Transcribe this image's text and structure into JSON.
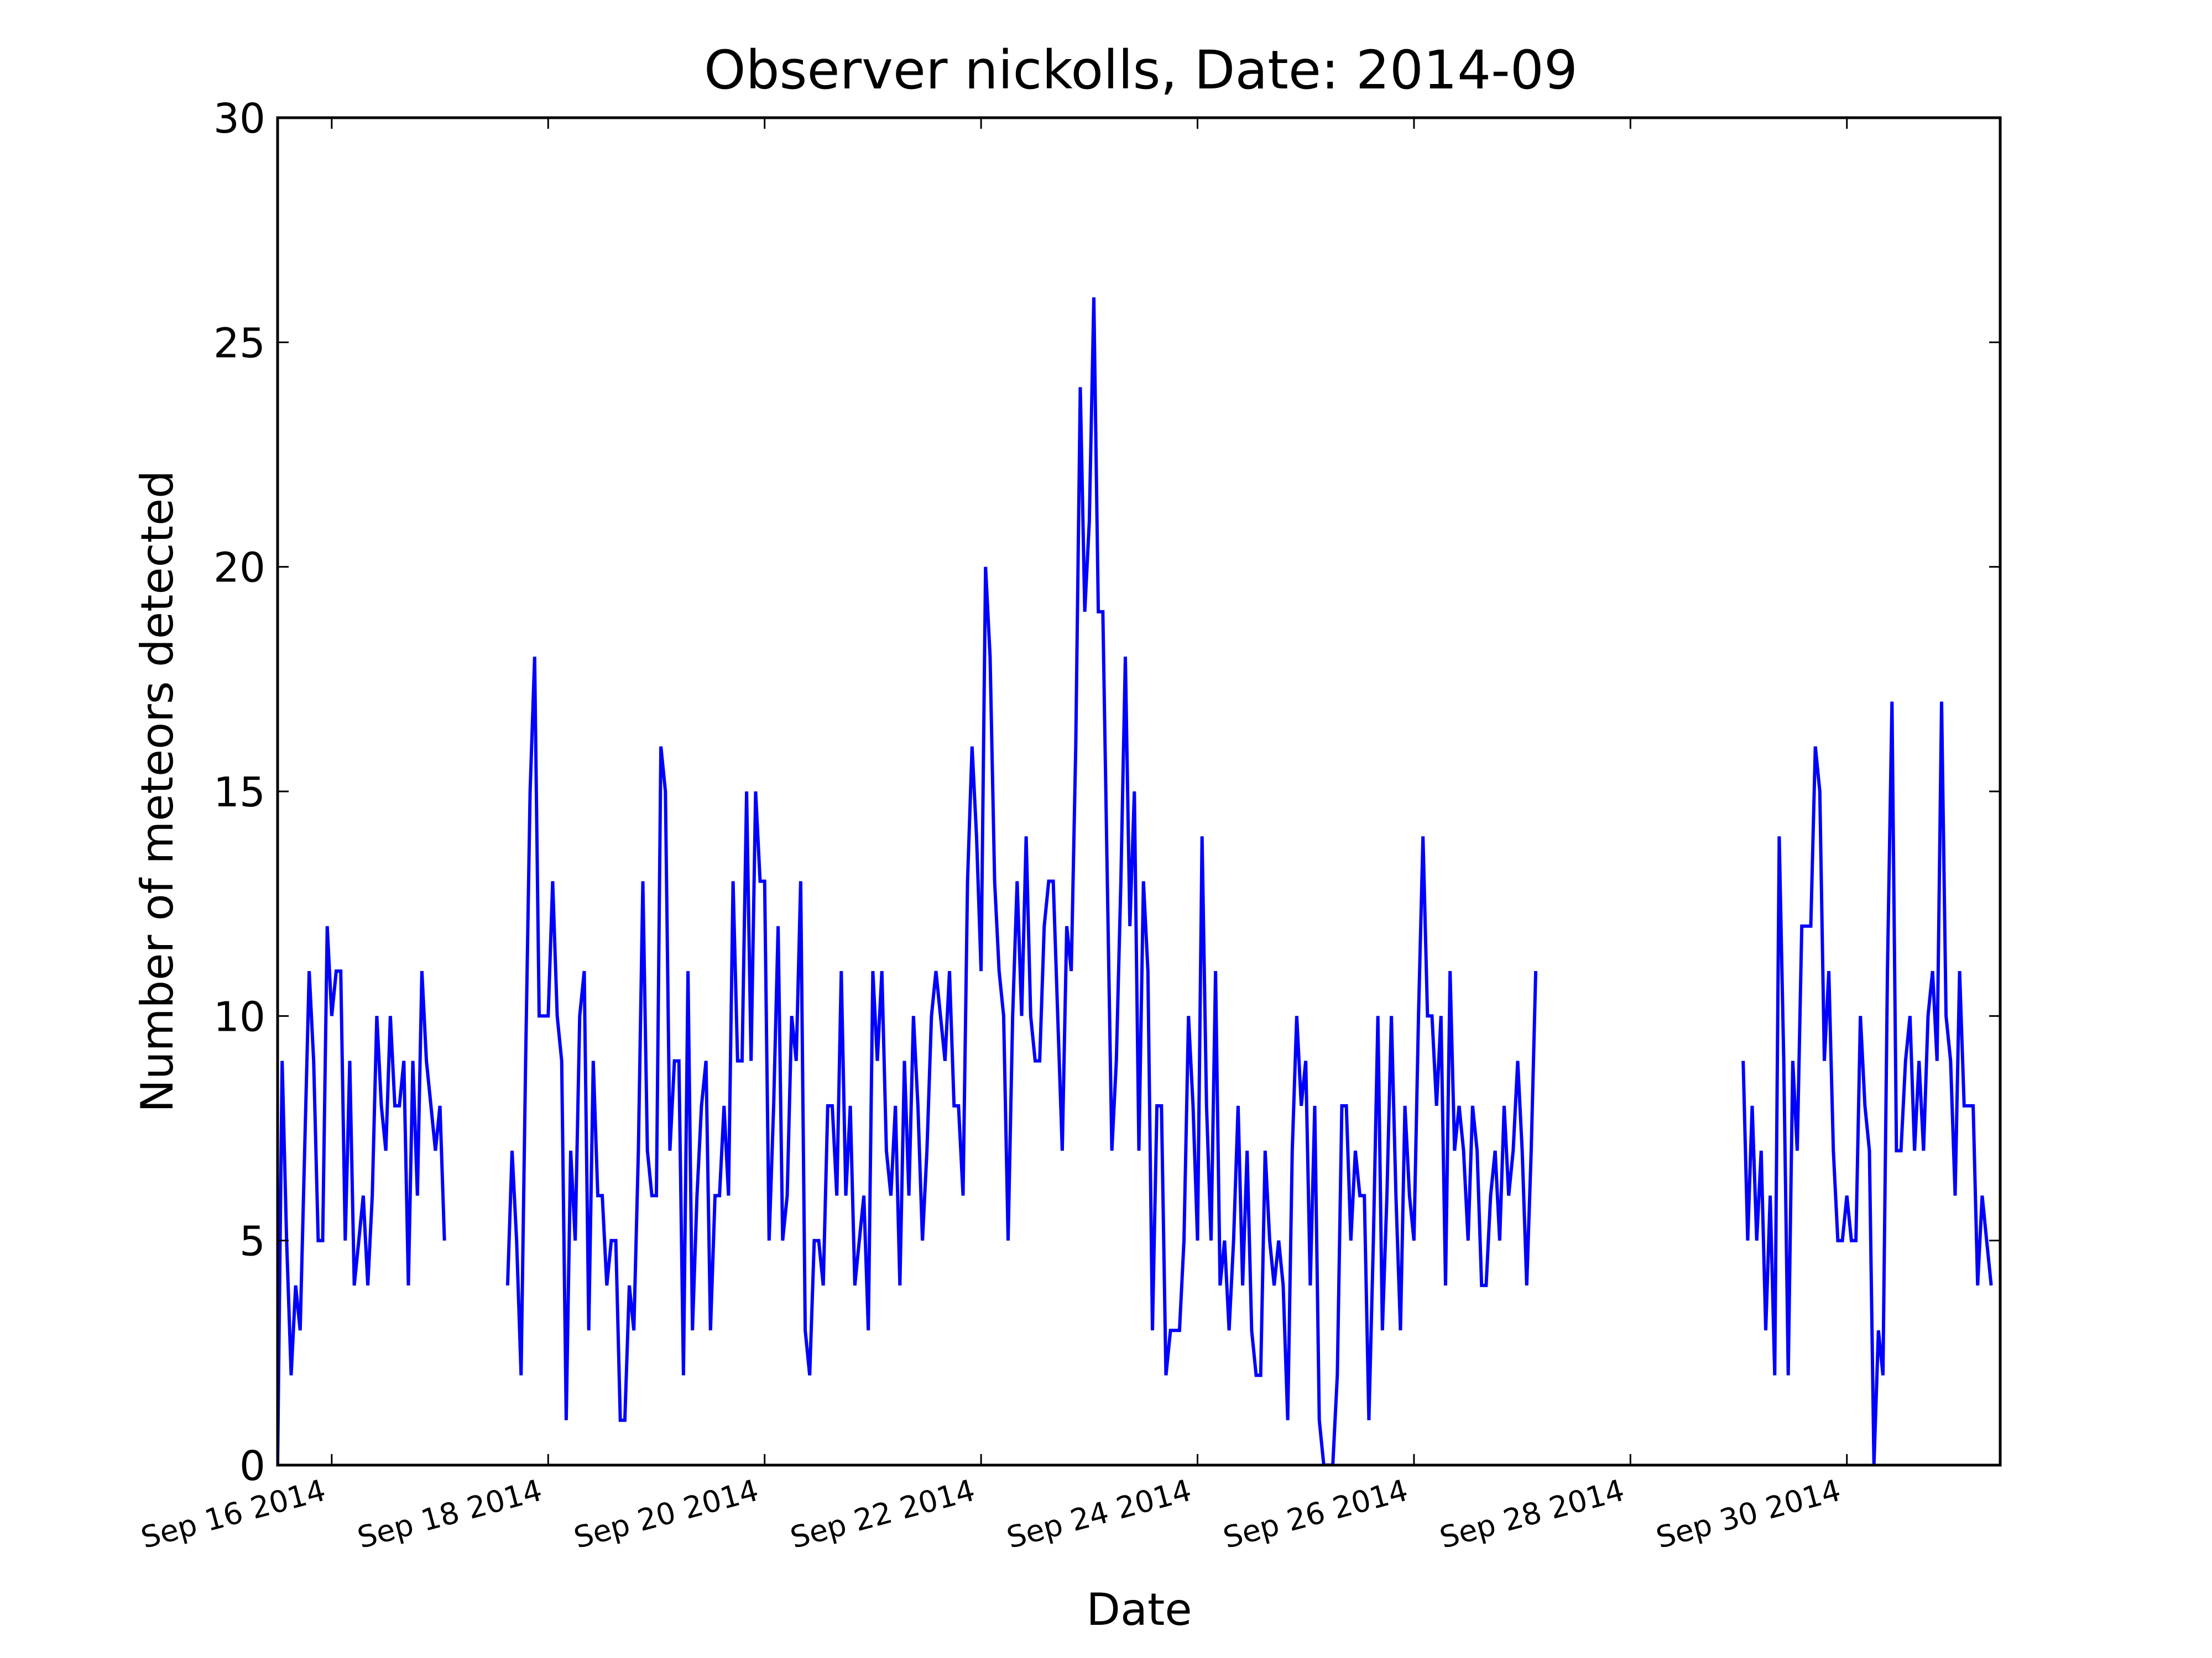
{
  "chart_data": {
    "type": "line",
    "title": "Observer nickolls, Date: 2014-09",
    "xlabel": "Date",
    "ylabel": "Number of meteors detected",
    "xlim": [
      "2014-09-15T12:00",
      "2014-10-01T10:00"
    ],
    "ylim": [
      0,
      30
    ],
    "grid": false,
    "x_ticks": [
      "2014-09-16",
      "2014-09-18",
      "2014-09-20",
      "2014-09-22",
      "2014-09-24",
      "2014-09-26",
      "2014-09-28",
      "2014-09-30"
    ],
    "x_tick_labels": [
      "Sep 16 2014",
      "Sep 18 2014",
      "Sep 20 2014",
      "Sep 22 2014",
      "Sep 24 2014",
      "Sep 26 2014",
      "Sep 28 2014",
      "Sep 30 2014"
    ],
    "y_ticks": [
      0,
      5,
      10,
      15,
      20,
      25,
      30
    ],
    "y_tick_labels": [
      "0",
      "5",
      "10",
      "15",
      "20",
      "25",
      "30"
    ],
    "series": [
      {
        "color": "#0000ff",
        "segments": [
          {
            "start": "2014-09-15T12:00",
            "step_hours": 1,
            "values": [
              0,
              9,
              5,
              2,
              4,
              3,
              7,
              11,
              9,
              5,
              5,
              12,
              10,
              11,
              11,
              5,
              9,
              4,
              5,
              6,
              4,
              6,
              10,
              8,
              7,
              10,
              8,
              8,
              9,
              4,
              9,
              6,
              11,
              9,
              8,
              7,
              8,
              5
            ]
          },
          {
            "start": "2014-09-17T15:00",
            "step_hours": 1,
            "values": [
              4,
              7,
              5,
              2,
              9,
              15,
              18,
              10,
              10,
              10,
              13,
              10,
              9,
              1,
              7,
              5,
              10,
              11,
              3,
              9,
              6,
              6,
              4,
              5,
              5,
              1,
              1,
              4,
              3,
              7,
              13,
              7,
              6,
              6,
              16,
              15,
              7,
              9,
              9,
              2,
              11,
              3,
              6,
              8,
              9,
              3,
              6,
              6,
              8,
              6,
              13,
              9,
              9,
              15,
              9,
              15,
              13,
              13,
              5,
              8,
              12,
              5,
              6,
              10,
              9,
              13,
              3,
              2,
              5,
              5,
              4,
              8,
              8,
              6,
              11,
              6,
              8,
              4,
              5,
              6,
              3,
              11,
              9,
              11,
              7,
              6,
              8,
              4,
              9,
              6,
              10,
              8,
              5,
              7,
              10,
              11,
              10,
              9,
              11,
              8,
              8,
              6,
              13,
              16,
              14,
              11,
              20,
              18,
              13,
              11,
              10,
              5,
              10,
              13,
              10,
              14,
              10,
              9,
              9,
              12,
              13,
              13,
              10,
              7,
              12,
              11,
              16,
              24,
              19,
              21,
              26,
              19,
              19,
              13,
              7,
              9,
              13,
              18,
              12,
              15,
              7,
              13,
              11,
              3,
              8,
              8,
              2,
              3,
              3,
              3,
              5,
              10,
              8,
              5,
              14,
              8,
              5,
              11,
              4,
              5,
              3,
              5,
              8,
              4,
              7,
              3,
              2,
              2,
              7,
              5,
              4,
              5,
              4,
              1,
              7,
              10,
              8,
              9,
              4,
              8,
              1,
              0,
              0,
              0,
              2,
              8,
              8,
              5,
              7,
              6,
              6,
              1,
              5,
              10,
              3,
              6,
              10,
              6,
              3,
              8,
              6,
              5,
              10,
              14,
              10,
              10,
              8,
              10,
              4,
              11,
              7,
              8,
              7,
              5,
              8,
              7,
              4,
              4,
              6,
              7,
              5,
              8,
              6,
              7,
              9,
              7,
              4,
              7,
              11
            ]
          },
          {
            "start": "2014-09-29T01:00",
            "step_hours": 1,
            "values": [
              9,
              5,
              8,
              5,
              7,
              3,
              6,
              2,
              14,
              9,
              2,
              9,
              7,
              12,
              12,
              12,
              16,
              15,
              9,
              11,
              7,
              5,
              5,
              6,
              5,
              5,
              10,
              8,
              7,
              0,
              3,
              2,
              11,
              17,
              7,
              7,
              9,
              10,
              7,
              9,
              7,
              10,
              11,
              9,
              17,
              10,
              9,
              6,
              11,
              8,
              8,
              8,
              4,
              6,
              5,
              4
            ]
          }
        ]
      }
    ]
  }
}
